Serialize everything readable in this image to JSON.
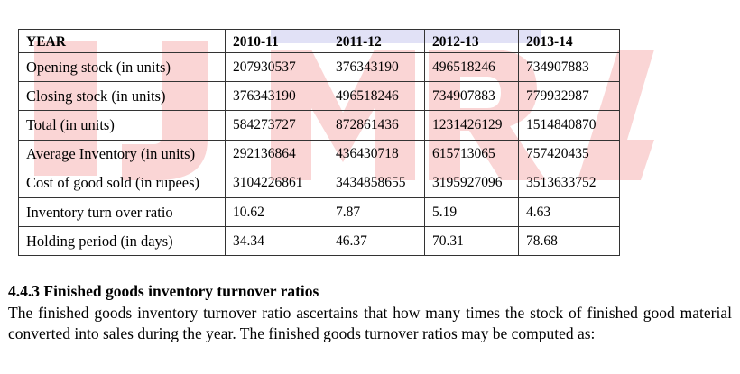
{
  "table": {
    "headers": [
      "YEAR",
      "2010-11",
      "2011-12",
      "2012-13",
      "2013-14"
    ],
    "rows": [
      {
        "label": "Opening stock  (in units)",
        "values": [
          "207930537",
          "376343190",
          "496518246",
          "734907883"
        ]
      },
      {
        "label": "Closing stock (in units)",
        "values": [
          "376343190",
          "496518246",
          "734907883",
          "779932987"
        ]
      },
      {
        "label": "Total  (in units)",
        "values": [
          "584273727",
          "872861436",
          "1231426129",
          "1514840870"
        ]
      },
      {
        "label": "Average Inventory (in units)",
        "values": [
          "292136864",
          "436430718",
          "615713065",
          "757420435"
        ]
      },
      {
        "label": "Cost of good sold (in rupees)",
        "values": [
          "3104226861",
          "3434858655",
          "3195927096",
          "3513633752"
        ]
      },
      {
        "label": "Inventory turn over ratio",
        "values": [
          "10.62",
          "7.87",
          "5.19",
          "4.63"
        ]
      },
      {
        "label": "Holding period (in days)",
        "values": [
          "34.34",
          "46.37",
          "70.31",
          "78.68"
        ]
      }
    ]
  },
  "section": {
    "heading": "4.4.3 Finished goods inventory turnover ratios",
    "paragraph": "The finished goods inventory turnover ratio ascertains that how many times the stock of finished good material converted into sales during the year. The finished goods turnover ratios may be computed as:"
  },
  "watermark": {
    "color": "#f4a3a3",
    "accent": "#b7b7e8"
  }
}
